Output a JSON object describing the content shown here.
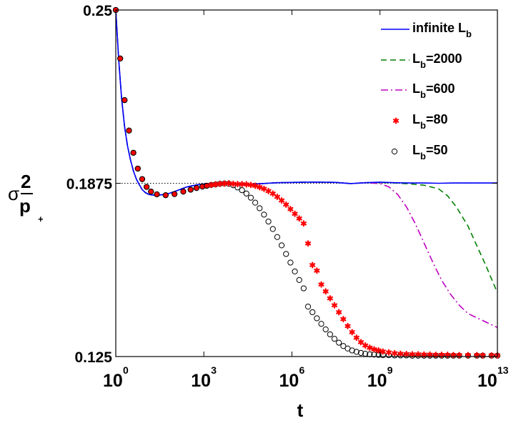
{
  "chart_data": {
    "type": "line",
    "title": "",
    "xlabel": "t",
    "ylabel": "σ²_{p+}",
    "ylabel_parts": {
      "sigma": "σ",
      "num": "2",
      "den": "p",
      "den_sub": "+"
    },
    "x_scale": "log10",
    "xlim_log10": [
      0,
      13
    ],
    "ylim": [
      0.125,
      0.25
    ],
    "x_ticks": [
      {
        "base": "10",
        "exp": "0",
        "log10": 0
      },
      {
        "base": "10",
        "exp": "3",
        "log10": 3
      },
      {
        "base": "10",
        "exp": "6",
        "log10": 6
      },
      {
        "base": "10",
        "exp": "9",
        "log10": 9
      },
      {
        "base": "10",
        "exp": "13",
        "log10": 13
      }
    ],
    "y_ticks": [
      {
        "label": "0.25",
        "value": 0.25
      },
      {
        "label": "0.1875",
        "value": 0.1875
      },
      {
        "label": "0.125",
        "value": 0.125
      }
    ],
    "reference_line": {
      "y": 0.1875,
      "style": "dotted"
    },
    "legend_position": "top-right",
    "series": [
      {
        "name": "infinite L_b",
        "label_main": "infinite L",
        "label_sub": "b",
        "label_tail": "",
        "style": "solid",
        "color": "#0000ff",
        "x_log10": [
          0,
          0.1,
          0.2,
          0.3,
          0.4,
          0.5,
          0.6,
          0.7,
          0.8,
          0.9,
          1.0,
          1.1,
          1.2,
          1.4,
          1.6,
          1.8,
          2.0,
          2.2,
          2.4,
          2.6,
          2.8,
          3.0,
          3.2,
          3.4,
          3.6,
          3.8,
          4.0,
          4.5,
          5.0,
          5.5,
          6.0,
          6.5,
          7.0,
          7.5,
          8.0,
          8.5,
          9.0,
          9.5,
          10.0,
          10.5,
          11.0,
          11.5,
          12.0,
          12.5,
          13.0
        ],
        "y": [
          0.25,
          0.232,
          0.218,
          0.208,
          0.201,
          0.196,
          0.192,
          0.189,
          0.187,
          0.1852,
          0.1842,
          0.1836,
          0.1833,
          0.1832,
          0.1834,
          0.1838,
          0.1845,
          0.1853,
          0.1861,
          0.1866,
          0.187,
          0.1872,
          0.1874,
          0.1875,
          0.1874,
          0.1872,
          0.187,
          0.1871,
          0.1874,
          0.1877,
          0.1878,
          0.1879,
          0.1879,
          0.1878,
          0.1874,
          0.1877,
          0.1879,
          0.1877,
          0.1876,
          0.1876,
          0.1875,
          0.1876,
          0.1876,
          0.1876,
          0.1876
        ]
      },
      {
        "name": "L_b=2000",
        "label_main": "L",
        "label_sub": "b",
        "label_tail": "=2000",
        "style": "dashed",
        "color": "#007f00",
        "x_log10": [
          0,
          0.1,
          0.2,
          0.3,
          0.4,
          0.5,
          0.6,
          0.7,
          0.8,
          0.9,
          1.0,
          1.1,
          1.2,
          1.4,
          1.6,
          1.8,
          2.0,
          2.2,
          2.4,
          2.6,
          2.8,
          3.0,
          3.2,
          3.4,
          3.6,
          3.8,
          4.0,
          4.5,
          5.0,
          5.5,
          6.0,
          6.5,
          7.0,
          7.5,
          8.0,
          8.5,
          9.0,
          9.5,
          10.0,
          10.5,
          11.0,
          11.3,
          11.6,
          12.0,
          12.3,
          12.6,
          13.0
        ],
        "y": [
          0.25,
          0.232,
          0.218,
          0.208,
          0.201,
          0.196,
          0.192,
          0.189,
          0.187,
          0.1852,
          0.1842,
          0.1836,
          0.1833,
          0.1832,
          0.1834,
          0.1838,
          0.1845,
          0.1853,
          0.1861,
          0.1866,
          0.187,
          0.1872,
          0.1874,
          0.1875,
          0.1874,
          0.1872,
          0.187,
          0.1871,
          0.1874,
          0.1877,
          0.1878,
          0.1879,
          0.1879,
          0.1878,
          0.1874,
          0.1877,
          0.1878,
          0.1876,
          0.1873,
          0.1868,
          0.1855,
          0.183,
          0.179,
          0.172,
          0.165,
          0.158,
          0.148
        ]
      },
      {
        "name": "L_b=600",
        "label_main": "L",
        "label_sub": "b",
        "label_tail": "=600",
        "style": "dashdot",
        "color": "#bf00bf",
        "x_log10": [
          0,
          0.1,
          0.2,
          0.3,
          0.4,
          0.5,
          0.6,
          0.7,
          0.8,
          0.9,
          1.0,
          1.1,
          1.2,
          1.4,
          1.6,
          1.8,
          2.0,
          2.2,
          2.4,
          2.6,
          2.8,
          3.0,
          3.2,
          3.4,
          3.6,
          3.8,
          4.0,
          4.5,
          5.0,
          5.5,
          6.0,
          6.5,
          7.0,
          7.5,
          8.0,
          8.5,
          9.0,
          9.3,
          9.6,
          9.9,
          10.2,
          10.5,
          10.8,
          11.1,
          11.4,
          11.7,
          12.0,
          12.5,
          13.0
        ],
        "y": [
          0.25,
          0.232,
          0.218,
          0.208,
          0.201,
          0.196,
          0.192,
          0.189,
          0.187,
          0.1852,
          0.1842,
          0.1836,
          0.1833,
          0.1832,
          0.1834,
          0.1838,
          0.1845,
          0.1853,
          0.1861,
          0.1866,
          0.187,
          0.1872,
          0.1874,
          0.1875,
          0.1874,
          0.1872,
          0.187,
          0.1871,
          0.1874,
          0.1877,
          0.1878,
          0.1879,
          0.1879,
          0.1878,
          0.1874,
          0.1877,
          0.1874,
          0.1862,
          0.1835,
          0.179,
          0.173,
          0.166,
          0.159,
          0.1525,
          0.1475,
          0.1435,
          0.1405,
          0.138,
          0.1355
        ]
      },
      {
        "name": "L_b=80",
        "label_main": "L",
        "label_sub": "b",
        "label_tail": "=80",
        "style": "star",
        "color": "#ff0000",
        "x_log10": [
          0,
          0.15,
          0.3,
          0.45,
          0.6,
          0.75,
          0.9,
          1.05,
          1.2,
          1.4,
          1.7,
          2.0,
          2.3,
          2.55,
          2.75,
          2.95,
          3.1,
          3.25,
          3.4,
          3.55,
          3.7,
          3.85,
          4.0,
          4.15,
          4.3,
          4.45,
          4.6,
          4.75,
          4.9,
          5.05,
          5.2,
          5.35,
          5.5,
          5.65,
          5.8,
          5.95,
          6.1,
          6.25,
          6.4,
          6.55,
          6.7,
          6.85,
          7.0,
          7.15,
          7.3,
          7.45,
          7.6,
          7.75,
          7.9,
          8.05,
          8.2,
          8.35,
          8.5,
          8.65,
          8.8,
          8.95,
          9.1,
          9.3,
          9.5,
          9.7,
          9.9,
          10.1,
          10.3,
          10.5,
          10.7,
          10.9,
          11.1,
          11.3,
          11.5,
          11.7,
          12.0,
          12.3,
          12.5,
          12.8,
          13.0
        ],
        "y": [
          0.25,
          0.2325,
          0.2175,
          0.2065,
          0.1985,
          0.1928,
          0.189,
          0.1862,
          0.1845,
          0.1835,
          0.1832,
          0.1836,
          0.1845,
          0.1852,
          0.1858,
          0.1863,
          0.1866,
          0.1869,
          0.1871,
          0.1873,
          0.1874,
          0.1875,
          0.1873,
          0.1872,
          0.1872,
          0.1871,
          0.1869,
          0.1866,
          0.1861,
          0.1855,
          0.1847,
          0.1838,
          0.1826,
          0.1813,
          0.1798,
          0.1782,
          0.1765,
          0.1748,
          0.173,
          0.1658,
          0.158,
          0.156,
          0.151,
          0.1485,
          0.146,
          0.1435,
          0.141,
          0.1385,
          0.136,
          0.1338,
          0.1318,
          0.1302,
          0.129,
          0.1282,
          0.1276,
          0.1272,
          0.1268,
          0.1265,
          0.1262,
          0.126,
          0.1259,
          0.1258,
          0.1258,
          0.1257,
          0.1257,
          0.1256,
          0.1256,
          0.1256,
          0.1255,
          0.1255,
          0.1255,
          0.1255,
          0.1254,
          0.1254,
          0.1254
        ]
      },
      {
        "name": "L_b=50",
        "label_main": "L",
        "label_sub": "b",
        "label_tail": "=50",
        "style": "circle",
        "color": "#000000",
        "x_log10": [
          0,
          0.15,
          0.3,
          0.45,
          0.6,
          0.75,
          0.9,
          1.05,
          1.2,
          1.4,
          1.7,
          2.0,
          2.3,
          2.55,
          2.75,
          2.95,
          3.1,
          3.25,
          3.4,
          3.55,
          3.7,
          3.85,
          4.0,
          4.15,
          4.3,
          4.45,
          4.6,
          4.75,
          4.9,
          5.05,
          5.2,
          5.35,
          5.5,
          5.65,
          5.8,
          5.95,
          6.1,
          6.25,
          6.4,
          6.55,
          6.7,
          6.85,
          7.0,
          7.15,
          7.3,
          7.45,
          7.6,
          7.75,
          7.9,
          8.05,
          8.2,
          8.35,
          8.5,
          8.65,
          8.8,
          8.95,
          9.1,
          9.3,
          9.5,
          9.7,
          9.9,
          10.1,
          10.3,
          10.5,
          10.7,
          10.9,
          11.1,
          11.3,
          11.5,
          11.7,
          12.0,
          12.3,
          12.5,
          12.8,
          13.0
        ],
        "y": [
          0.25,
          0.2325,
          0.2175,
          0.2065,
          0.1985,
          0.1928,
          0.189,
          0.1862,
          0.1845,
          0.1835,
          0.1832,
          0.1836,
          0.1845,
          0.1852,
          0.1858,
          0.1863,
          0.1866,
          0.1869,
          0.1871,
          0.1873,
          0.1874,
          0.1873,
          0.1868,
          0.186,
          0.185,
          0.1838,
          0.1823,
          0.1805,
          0.1785,
          0.1762,
          0.1737,
          0.171,
          0.1681,
          0.1651,
          0.162,
          0.1589,
          0.1557,
          0.1526,
          0.1496,
          0.143,
          0.141,
          0.1388,
          0.1368,
          0.1348,
          0.133,
          0.1314,
          0.13,
          0.1288,
          0.1279,
          0.1272,
          0.1267,
          0.1263,
          0.126,
          0.1258,
          0.1257,
          0.1256,
          0.1255,
          0.1255,
          0.1254,
          0.1254,
          0.1254,
          0.1253,
          0.1253,
          0.1253,
          0.1253,
          0.1253,
          0.1253,
          0.1253,
          0.1253,
          0.1253,
          0.1253,
          0.1253,
          0.1253,
          0.1253,
          0.1253
        ]
      }
    ]
  }
}
